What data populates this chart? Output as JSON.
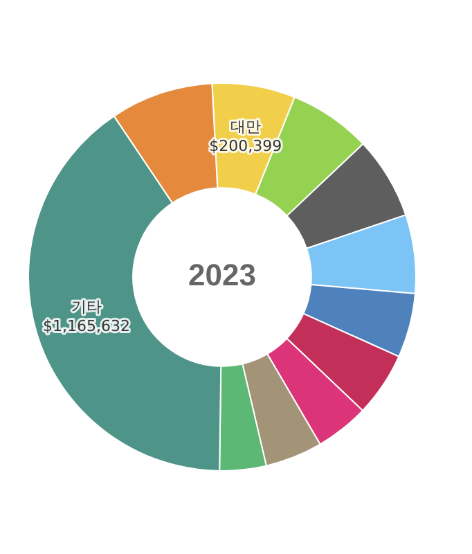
{
  "chart_data": {
    "type": "donut",
    "title": "2023",
    "categories": [
      "대만",
      null,
      null,
      null,
      null,
      null,
      null,
      null,
      null,
      "기타",
      null
    ],
    "values": [
      200399,
      198000,
      198000,
      189000,
      155000,
      155000,
      129000,
      138000,
      112000,
      1165632,
      248000
    ],
    "value_labels": [
      "$200,399",
      null,
      null,
      null,
      null,
      null,
      null,
      null,
      null,
      "$1,165,632",
      null
    ],
    "colors": [
      "#f2cf4a",
      "#96d252",
      "#5e5e5e",
      "#7cc4f5",
      "#4f81bd",
      "#c2305a",
      "#dc3478",
      "#a39478",
      "#5cb874",
      "#4f9488",
      "#e58a3c"
    ],
    "legend": false
  }
}
